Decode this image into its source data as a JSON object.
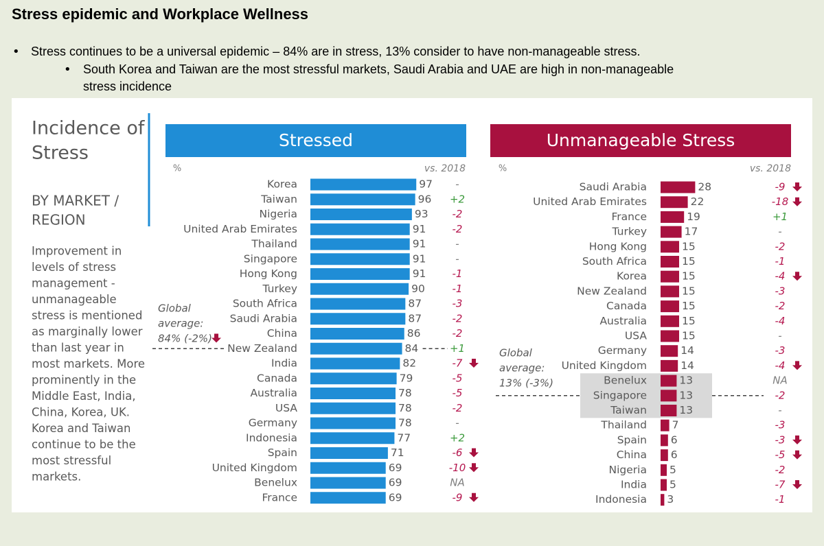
{
  "header": {
    "title": "Stress epidemic and Workplace Wellness",
    "bullets": [
      "Stress continues to be a universal epidemic – 84% are in stress, 13% consider to have non-manageable stress."
    ],
    "sub_bullets": [
      [
        "South Korea and Taiwan are the most stressful markets, Saudi Arabia and UAE are high in non-manageable",
        "stress incidence"
      ]
    ]
  },
  "sidebar": {
    "title": [
      "Incidence of",
      "Stress"
    ],
    "subtitle": [
      "BY MARKET /",
      "REGION"
    ],
    "text": [
      "Improvement in",
      "levels of stress",
      "management -",
      "unmanageable",
      "stress is mentioned",
      "as marginally lower",
      "than last year in",
      "most markets. More",
      "prominently in the",
      "Middle East, India,",
      "China, Korea, UK.",
      "Korea and Taiwan",
      "continue to be the",
      "most stressful",
      "markets."
    ]
  },
  "chart_data": [
    {
      "type": "bar",
      "orientation": "horizontal",
      "title": "Stressed",
      "unit_label": "%",
      "change_label": "vs. 2018",
      "color": "#1f8dd6",
      "xlim": [
        0,
        100
      ],
      "categories": [
        "Korea",
        "Taiwan",
        "Nigeria",
        "United Arab Emirates",
        "Thailand",
        "Singapore",
        "Hong Kong",
        "Turkey",
        "South Africa",
        "Saudi Arabia",
        "China",
        "New Zealand",
        "India",
        "Canada",
        "Australia",
        "USA",
        "Germany",
        "Indonesia",
        "Spain",
        "United Kingdom",
        "Benelux",
        "France"
      ],
      "values": [
        97,
        96,
        93,
        91,
        91,
        91,
        91,
        90,
        87,
        87,
        86,
        84,
        82,
        79,
        78,
        78,
        78,
        77,
        71,
        69,
        69,
        69
      ],
      "changes": [
        "-",
        "+2",
        "-2",
        "-2",
        "-",
        "-",
        "-1",
        "-1",
        "-3",
        "-2",
        "-2",
        "+1",
        "-7",
        "-5",
        "-5",
        "-2",
        "-",
        "+2",
        "-6",
        "-10",
        "NA",
        "-9"
      ],
      "arrows": [
        false,
        false,
        false,
        false,
        false,
        false,
        false,
        false,
        false,
        false,
        false,
        false,
        true,
        false,
        false,
        false,
        false,
        false,
        true,
        true,
        false,
        true
      ],
      "average": 84,
      "average_label": [
        "Global",
        "average:",
        "84% (-2%)"
      ],
      "average_arrow": true
    },
    {
      "type": "bar",
      "orientation": "horizontal",
      "title": "Unmanageable Stress",
      "unit_label": "%",
      "change_label": "vs. 2018",
      "color": "#a8113f",
      "xlim": [
        0,
        30
      ],
      "categories": [
        "Saudi Arabia",
        "United Arab Emirates",
        "France",
        "Turkey",
        "Hong Kong",
        "South Africa",
        "Korea",
        "New Zealand",
        "Canada",
        "Australia",
        "USA",
        "Germany",
        "United Kingdom",
        "Benelux",
        "Singapore",
        "Taiwan",
        "Thailand",
        "Spain",
        "China",
        "Nigeria",
        "India",
        "Indonesia"
      ],
      "values": [
        28,
        22,
        19,
        17,
        15,
        15,
        15,
        15,
        15,
        15,
        15,
        14,
        14,
        13,
        13,
        13,
        7,
        6,
        6,
        5,
        5,
        3
      ],
      "changes": [
        "-9",
        "-18",
        "+1",
        "-",
        "-2",
        "-1",
        "-4",
        "-3",
        "-2",
        "-4",
        "-",
        "-3",
        "-4",
        "NA",
        "-2",
        "-",
        "-3",
        "-3",
        "-5",
        "-2",
        "-7",
        "-1"
      ],
      "arrows": [
        true,
        true,
        false,
        false,
        false,
        false,
        true,
        false,
        false,
        false,
        false,
        false,
        true,
        false,
        false,
        false,
        false,
        true,
        true,
        false,
        true,
        false
      ],
      "average": 13,
      "average_label": [
        "Global",
        "average:",
        "13% (-3%)"
      ],
      "average_arrow": false
    }
  ],
  "colors": {
    "up": "#3c9a3c",
    "down": "#b5174f",
    "neutral": "#7f7f7f",
    "arrow": "#a8113f"
  }
}
